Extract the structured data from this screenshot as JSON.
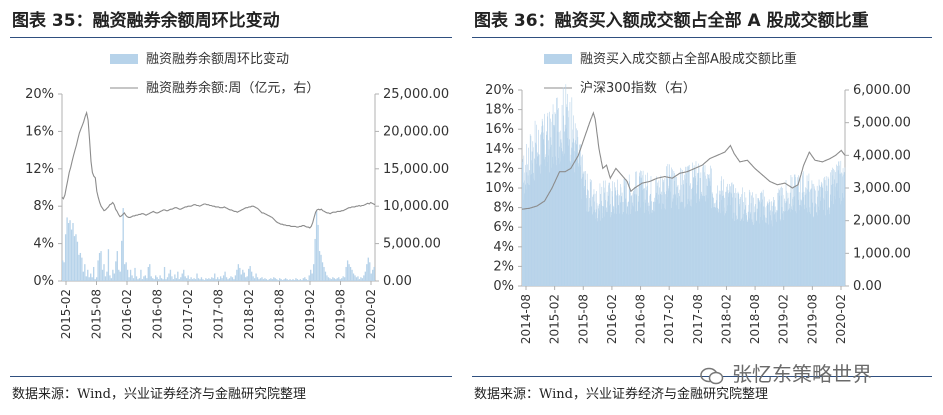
{
  "panels": [
    {
      "title": "图表 35：融资融券余额周环比变动",
      "source": "数据来源：Wind，兴业证券经济与金融研究院整理"
    },
    {
      "title": "图表 36：融资买入额成交额占全部 A 股成交额比重",
      "source": "数据来源：Wind，兴业证券经济与金融研究院整理"
    }
  ],
  "watermark": "张忆东策略世界",
  "colors": {
    "bar": "#b7d3ea",
    "line": "#8c8c8c",
    "axis": "#b0b0b0",
    "text": "#333333"
  },
  "chart_data": [
    {
      "type": "bar",
      "title": "",
      "legend": [
        "融资融券余额周环比变动",
        "融资融券余额:周（亿元，右）"
      ],
      "legend_position": "top",
      "x_ticks": [
        "2015-02",
        "2015-08",
        "2016-02",
        "2016-08",
        "2017-02",
        "2017-08",
        "2018-02",
        "2018-08",
        "2019-02",
        "2019-08",
        "2020-02"
      ],
      "y_left": {
        "ticks": [
          "0%",
          "4%",
          "8%",
          "12%",
          "16%",
          "20%"
        ],
        "range": [
          0,
          0.2
        ]
      },
      "y_right": {
        "ticks": [
          "0.00",
          "5,000.00",
          "10,000.00",
          "15,000.00",
          "20,000.00",
          "25,000.00"
        ],
        "range": [
          0,
          25000
        ]
      },
      "series": [
        {
          "name": "融资融券余额周环比变动",
          "kind": "bar",
          "axis": "left",
          "x_start": "2015-02",
          "step": "week",
          "values": [
            0.022,
            0.02,
            0.05,
            0.068,
            0.062,
            0.065,
            0.055,
            0.062,
            0.048,
            0.05,
            0.042,
            0.028,
            0.03,
            0.025,
            0.01,
            0.018,
            0.005,
            0.012,
            0.004,
            0.008,
            0.004,
            0.015,
            0.002,
            0.004,
            0.022,
            0.03,
            0.032,
            0.012,
            0.018,
            0.005,
            0.01,
            0.034,
            0.006,
            0.003,
            0.012,
            0.008,
            0.021,
            0.032,
            0.012,
            0.01,
            0.043,
            0.078,
            0.018,
            0.02,
            0.012,
            0.004,
            0.012,
            0.006,
            0.003,
            0.014,
            0.005,
            0.002,
            0.003,
            0.012,
            0.002,
            0.005,
            0.006,
            0.003,
            0.015,
            0.018,
            0.005,
            0.003,
            0.002,
            0.006,
            0.004,
            0.002,
            0.006,
            0.003,
            0.002,
            0.015,
            0.002,
            0.004,
            0.008,
            0.012,
            0.005,
            0.002,
            0.007,
            0.003,
            0.01,
            0.002,
            0.004,
            0.008,
            0.012,
            0.005,
            0.003,
            0.006,
            0.002,
            0.004,
            0.002,
            0.003,
            0.002,
            0.008,
            0.003,
            0.002,
            0.004,
            0.002,
            0.001,
            0.003,
            0.002,
            0.003,
            0.002,
            0.004,
            0.003,
            0.008,
            0.002,
            0.004,
            0.002,
            0.005,
            0.003,
            0.006,
            0.01,
            0.004,
            0.002,
            0.003,
            0.005,
            0.004,
            0.002,
            0.006,
            0.012,
            0.018,
            0.014,
            0.007,
            0.012,
            0.009,
            0.004,
            0.005,
            0.013,
            0.016,
            0.01,
            0.005,
            0.003,
            0.008,
            0.004,
            0.002,
            0.003,
            0.004,
            0.002,
            0.003,
            0.002,
            0.001,
            0.002,
            0.003,
            0.002,
            0.004,
            0.003,
            0.002,
            0.001,
            0.003,
            0.002,
            0.001,
            0.002,
            0.003,
            0.002,
            0.001,
            0.002,
            0.001,
            0.002,
            0.001,
            0.003,
            0.002,
            0.001,
            0.002,
            0.001,
            0.003,
            0.004,
            0.002,
            0.001,
            0.006,
            0.012,
            0.008,
            0.018,
            0.045,
            0.075,
            0.06,
            0.032,
            0.028,
            0.02,
            0.015,
            0.01,
            0.006,
            0.004,
            0.003,
            0.002,
            0.004,
            0.003,
            0.002,
            0.003,
            0.004,
            0.002,
            0.003,
            0.005,
            0.004,
            0.015,
            0.022,
            0.018,
            0.015,
            0.012,
            0.008,
            0.006,
            0.004,
            0.005,
            0.002,
            0.004,
            0.003,
            0.006,
            0.01,
            0.018,
            0.025,
            0.02,
            0.008,
            0.012,
            0.015
          ]
        },
        {
          "name": "融资融券余额:周（亿元，右）",
          "kind": "line",
          "axis": "right",
          "x_start": "2015-02",
          "step": "week",
          "values": [
            11200,
            11000,
            11500,
            12500,
            13500,
            14500,
            15200,
            16000,
            16800,
            17500,
            18200,
            19000,
            19800,
            20300,
            20800,
            21300,
            22000,
            22500,
            21500,
            19000,
            16000,
            14500,
            14000,
            13800,
            12000,
            11200,
            10500,
            10000,
            9700,
            9400,
            9500,
            9700,
            9900,
            10200,
            10300,
            10500,
            10200,
            9600,
            9300,
            8900,
            8600,
            8700,
            8900,
            9100,
            8800,
            8600,
            8500,
            8500,
            8600,
            8700,
            8700,
            8800,
            8800,
            8900,
            8900,
            9000,
            9000,
            8900,
            8800,
            8900,
            9000,
            9100,
            9200,
            9300,
            9200,
            9100,
            9100,
            9200,
            9300,
            9400,
            9500,
            9500,
            9400,
            9400,
            9500,
            9600,
            9600,
            9700,
            9800,
            9800,
            9700,
            9600,
            9600,
            9700,
            9800,
            9900,
            9900,
            10000,
            10000,
            10000,
            10100,
            10200,
            10200,
            10100,
            10100,
            10000,
            10100,
            10200,
            10300,
            10300,
            10200,
            10200,
            10100,
            10100,
            10000,
            10000,
            9900,
            9900,
            9900,
            9800,
            9800,
            9800,
            9900,
            9800,
            9700,
            9600,
            9500,
            9500,
            9400,
            9300,
            9300,
            9200,
            9300,
            9400,
            9500,
            9600,
            9700,
            9800,
            9800,
            9900,
            9900,
            10000,
            10000,
            9900,
            9800,
            9700,
            9500,
            9300,
            9100,
            9100,
            9000,
            8900,
            8800,
            8700,
            8600,
            8500,
            8300,
            8100,
            7900,
            7800,
            7700,
            7600,
            7600,
            7500,
            7500,
            7400,
            7400,
            7400,
            7300,
            7300,
            7300,
            7300,
            7200,
            7200,
            7300,
            7300,
            7400,
            7400,
            7300,
            7200,
            7200,
            7100,
            7300,
            7800,
            8500,
            9200,
            9500,
            9600,
            9500,
            9600,
            9400,
            9300,
            9200,
            9100,
            9100,
            9000,
            9100,
            9200,
            9200,
            9200,
            9300,
            9300,
            9300,
            9400,
            9400,
            9500,
            9600,
            9700,
            9800,
            9800,
            9900,
            9900,
            9900,
            10000,
            10000,
            10100,
            10000,
            10100,
            10100,
            10200,
            10300,
            10400,
            10300,
            10500,
            10400,
            10300,
            10200
          ]
        }
      ]
    },
    {
      "type": "bar",
      "title": "",
      "legend": [
        "融资买入成交额占全部A股成交额比重",
        "沪深300指数（右）"
      ],
      "legend_position": "top",
      "x_ticks": [
        "2014-08",
        "2015-02",
        "2015-08",
        "2016-02",
        "2016-08",
        "2017-02",
        "2017-08",
        "2018-02",
        "2018-08",
        "2019-02",
        "2019-08",
        "2020-02"
      ],
      "y_left": {
        "ticks": [
          "0%",
          "2%",
          "4%",
          "6%",
          "8%",
          "10%",
          "12%",
          "14%",
          "16%",
          "18%",
          "20%"
        ],
        "range": [
          0,
          0.2
        ]
      },
      "y_right": {
        "ticks": [
          "0.00",
          "1,000.00",
          "2,000.00",
          "3,000.00",
          "4,000.00",
          "5,000.00",
          "6,000.00"
        ],
        "range": [
          0,
          6000
        ]
      },
      "series": [
        {
          "name": "融资买入成交额占全部A股成交额比重",
          "kind": "bar",
          "axis": "left",
          "x_start": "2014-08",
          "step": "day",
          "anchors": [
            [
              0,
              0.11
            ],
            [
              20,
              0.135
            ],
            [
              45,
              0.145
            ],
            [
              70,
              0.15
            ],
            [
              90,
              0.16
            ],
            [
              105,
              0.17
            ],
            [
              115,
              0.175
            ],
            [
              130,
              0.165
            ],
            [
              145,
              0.14
            ],
            [
              160,
              0.115
            ],
            [
              175,
              0.095
            ],
            [
              195,
              0.085
            ],
            [
              215,
              0.09
            ],
            [
              240,
              0.092
            ],
            [
              265,
              0.095
            ],
            [
              290,
              0.098
            ],
            [
              315,
              0.1
            ],
            [
              340,
              0.097
            ],
            [
              365,
              0.1
            ],
            [
              390,
              0.105
            ],
            [
              415,
              0.102
            ],
            [
              440,
              0.103
            ],
            [
              465,
              0.108
            ],
            [
              490,
              0.105
            ],
            [
              515,
              0.1
            ],
            [
              540,
              0.095
            ],
            [
              565,
              0.088
            ],
            [
              590,
              0.085
            ],
            [
              615,
              0.082
            ],
            [
              640,
              0.083
            ],
            [
              665,
              0.078
            ],
            [
              690,
              0.085
            ],
            [
              715,
              0.095
            ],
            [
              740,
              0.1
            ],
            [
              760,
              0.098
            ],
            [
              780,
              0.09
            ],
            [
              800,
              0.093
            ],
            [
              820,
              0.097
            ],
            [
              835,
              0.105
            ],
            [
              850,
              0.108
            ],
            [
              860,
              0.106
            ]
          ]
        },
        {
          "name": "沪深300指数（右）",
          "kind": "line",
          "axis": "right",
          "x_start": "2014-08",
          "step": "day",
          "anchors": [
            [
              0,
              2350
            ],
            [
              20,
              2380
            ],
            [
              40,
              2450
            ],
            [
              60,
              2600
            ],
            [
              80,
              3000
            ],
            [
              100,
              3500
            ],
            [
              115,
              3500
            ],
            [
              130,
              3600
            ],
            [
              150,
              4000
            ],
            [
              165,
              4500
            ],
            [
              180,
              5000
            ],
            [
              190,
              5300
            ],
            [
              195,
              5100
            ],
            [
              205,
              4200
            ],
            [
              215,
              3600
            ],
            [
              225,
              3700
            ],
            [
              235,
              3300
            ],
            [
              250,
              3600
            ],
            [
              265,
              3400
            ],
            [
              280,
              3200
            ],
            [
              290,
              2900
            ],
            [
              300,
              3000
            ],
            [
              320,
              3150
            ],
            [
              340,
              3200
            ],
            [
              360,
              3300
            ],
            [
              380,
              3350
            ],
            [
              400,
              3300
            ],
            [
              420,
              3450
            ],
            [
              440,
              3500
            ],
            [
              460,
              3600
            ],
            [
              480,
              3700
            ],
            [
              500,
              3900
            ],
            [
              520,
              4000
            ],
            [
              540,
              4100
            ],
            [
              555,
              4300
            ],
            [
              565,
              4050
            ],
            [
              580,
              3800
            ],
            [
              600,
              3850
            ],
            [
              620,
              3600
            ],
            [
              640,
              3400
            ],
            [
              660,
              3200
            ],
            [
              680,
              3100
            ],
            [
              700,
              3150
            ],
            [
              720,
              3000
            ],
            [
              735,
              3100
            ],
            [
              750,
              3700
            ],
            [
              765,
              4100
            ],
            [
              780,
              3850
            ],
            [
              800,
              3800
            ],
            [
              820,
              3900
            ],
            [
              835,
              4000
            ],
            [
              850,
              4150
            ],
            [
              860,
              4000
            ]
          ]
        }
      ]
    }
  ]
}
